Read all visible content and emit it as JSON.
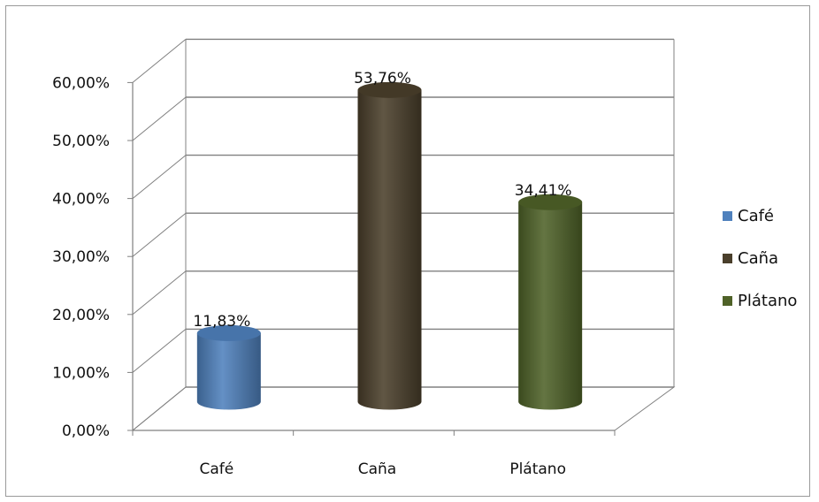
{
  "chart_data": {
    "type": "bar",
    "style": "3d-cylinder",
    "categories": [
      "Café",
      "Caña",
      "Plátano"
    ],
    "values": [
      11.83,
      53.76,
      34.41
    ],
    "value_labels": [
      "11,83%",
      "53,76%",
      "34,41%"
    ],
    "colors": [
      "#4f81bd",
      "#4a3f2b",
      "#4f6228"
    ],
    "y_ticks": [
      "0,00%",
      "10,00%",
      "20,00%",
      "30,00%",
      "40,00%",
      "50,00%",
      "60,00%"
    ],
    "ylim": [
      0,
      60
    ],
    "grid": true,
    "legend": {
      "position": "right",
      "entries": [
        "Café",
        "Caña",
        "Plátano"
      ]
    },
    "title": "",
    "xlabel": "",
    "ylabel": ""
  }
}
